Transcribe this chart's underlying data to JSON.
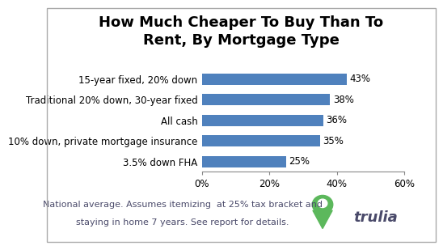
{
  "title": "How Much Cheaper To Buy Than To\nRent, By Mortgage Type",
  "categories": [
    "3.5% down FHA",
    "10% down, private mortgage insurance",
    "All cash",
    "Traditional 20% down, 30-year fixed",
    "15-year fixed, 20% down"
  ],
  "values": [
    25,
    35,
    36,
    38,
    43
  ],
  "bar_color": "#4F81BD",
  "xlim": [
    0,
    60
  ],
  "xticks": [
    0,
    20,
    40,
    60
  ],
  "xtick_labels": [
    "0%",
    "20%",
    "40%",
    "60%"
  ],
  "bar_labels": [
    "25%",
    "35%",
    "36%",
    "38%",
    "43%"
  ],
  "footnote_line1": "National average. Assumes itemizing  at 25% tax bracket and",
  "footnote_line2": "staying in home 7 years. See report for details.",
  "trulia_color": "#5CB85C",
  "trulia_text_color": "#4A4A6A",
  "footnote_color": "#4A4A6A",
  "title_fontsize": 13,
  "label_fontsize": 8.5,
  "tick_fontsize": 8.5,
  "footnote_fontsize": 8,
  "background_color": "#ffffff",
  "border_color": "#aaaaaa"
}
